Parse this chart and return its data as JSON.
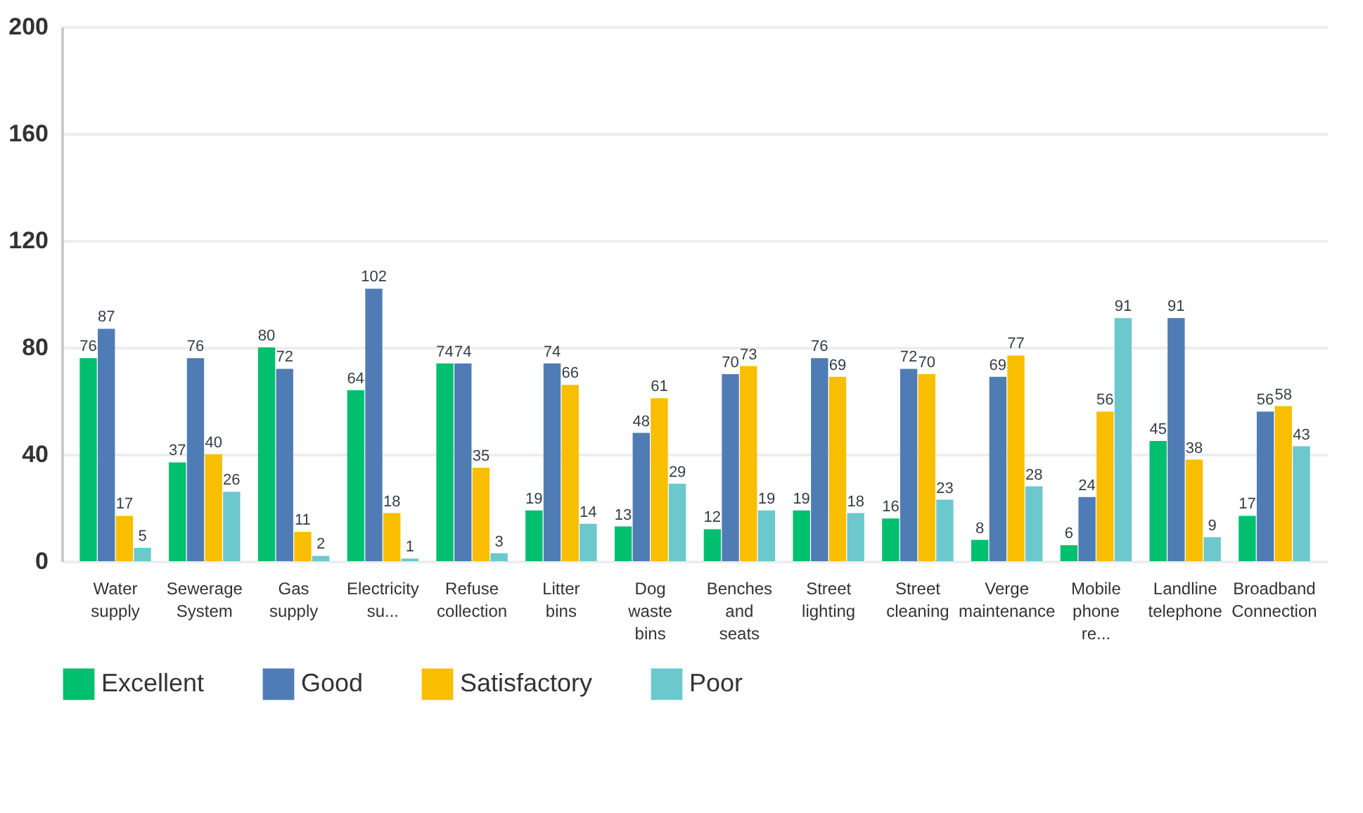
{
  "chart_data": {
    "type": "bar",
    "categories": [
      "Water supply",
      "Sewerage System",
      "Gas supply",
      "Electricity su...",
      "Refuse collection",
      "Litter bins",
      "Dog waste bins",
      "Benches and seats",
      "Street lighting",
      "Street cleaning",
      "Verge maintenance",
      "Mobile phone re...",
      "Landline telephone",
      "Broadband Connection"
    ],
    "series": [
      {
        "name": "Excellent",
        "color": "#00bf6f",
        "values": [
          76,
          37,
          80,
          64,
          74,
          19,
          13,
          12,
          19,
          16,
          8,
          6,
          45,
          17
        ]
      },
      {
        "name": "Good",
        "color": "#507cb6",
        "values": [
          87,
          76,
          72,
          102,
          74,
          74,
          48,
          70,
          76,
          72,
          69,
          24,
          91,
          56
        ]
      },
      {
        "name": "Satisfactory",
        "color": "#f9be00",
        "values": [
          17,
          40,
          11,
          18,
          35,
          66,
          61,
          73,
          69,
          70,
          77,
          56,
          38,
          58
        ]
      },
      {
        "name": "Poor",
        "color": "#6bc8cd",
        "values": [
          5,
          26,
          2,
          1,
          3,
          14,
          29,
          19,
          18,
          23,
          28,
          91,
          9,
          43
        ]
      }
    ],
    "ylim": [
      0,
      200
    ],
    "yticks": [
      0,
      40,
      80,
      120,
      160,
      200
    ],
    "grid": "y",
    "legend": "bottom",
    "data_labels": true
  }
}
